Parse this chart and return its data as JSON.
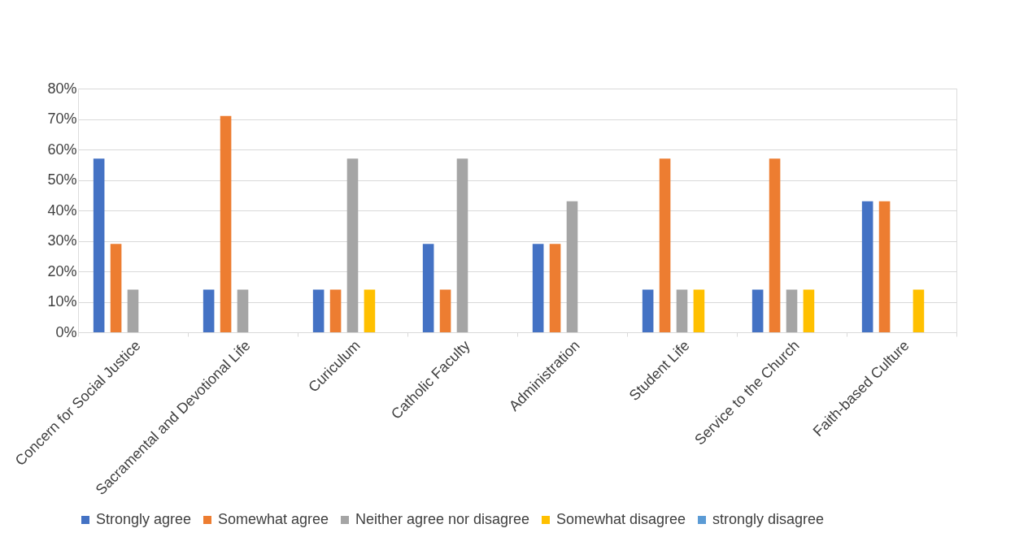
{
  "chart_data": {
    "type": "bar",
    "categories": [
      "Concern for Social Justice",
      "Sacramental and Devotional Life",
      "Curiculum",
      "Catholic Faculty",
      "Administration",
      "Student Life",
      "Service to the Church",
      "Faith-based Culture"
    ],
    "series": [
      {
        "name": "Strongly agree",
        "color": "#4472c4",
        "values": [
          57,
          14,
          14,
          29,
          29,
          14,
          14,
          43
        ]
      },
      {
        "name": "Somewhat agree",
        "color": "#ed7d31",
        "values": [
          29,
          71,
          14,
          14,
          29,
          57,
          57,
          43
        ]
      },
      {
        "name": "Neither agree nor disagree",
        "color": "#a5a5a5",
        "values": [
          14,
          14,
          57,
          57,
          43,
          14,
          14,
          0
        ]
      },
      {
        "name": "Somewhat disagree",
        "color": "#ffc000",
        "values": [
          0,
          0,
          14,
          0,
          0,
          14,
          14,
          14
        ]
      },
      {
        "name": "strongly disagree",
        "color": "#5b9bd5",
        "values": [
          0,
          0,
          0,
          0,
          0,
          0,
          0,
          0
        ]
      }
    ],
    "ylim": [
      0,
      80
    ],
    "yticks": [
      {
        "value": 0,
        "label": "0%"
      },
      {
        "value": 10,
        "label": "10%"
      },
      {
        "value": 20,
        "label": "20%"
      },
      {
        "value": 30,
        "label": "30%"
      },
      {
        "value": 40,
        "label": "40%"
      },
      {
        "value": 50,
        "label": "50%"
      },
      {
        "value": 60,
        "label": "60%"
      },
      {
        "value": 70,
        "label": "70%"
      },
      {
        "value": 80,
        "label": "80%"
      }
    ],
    "grid": "y",
    "legend": "bottom"
  }
}
